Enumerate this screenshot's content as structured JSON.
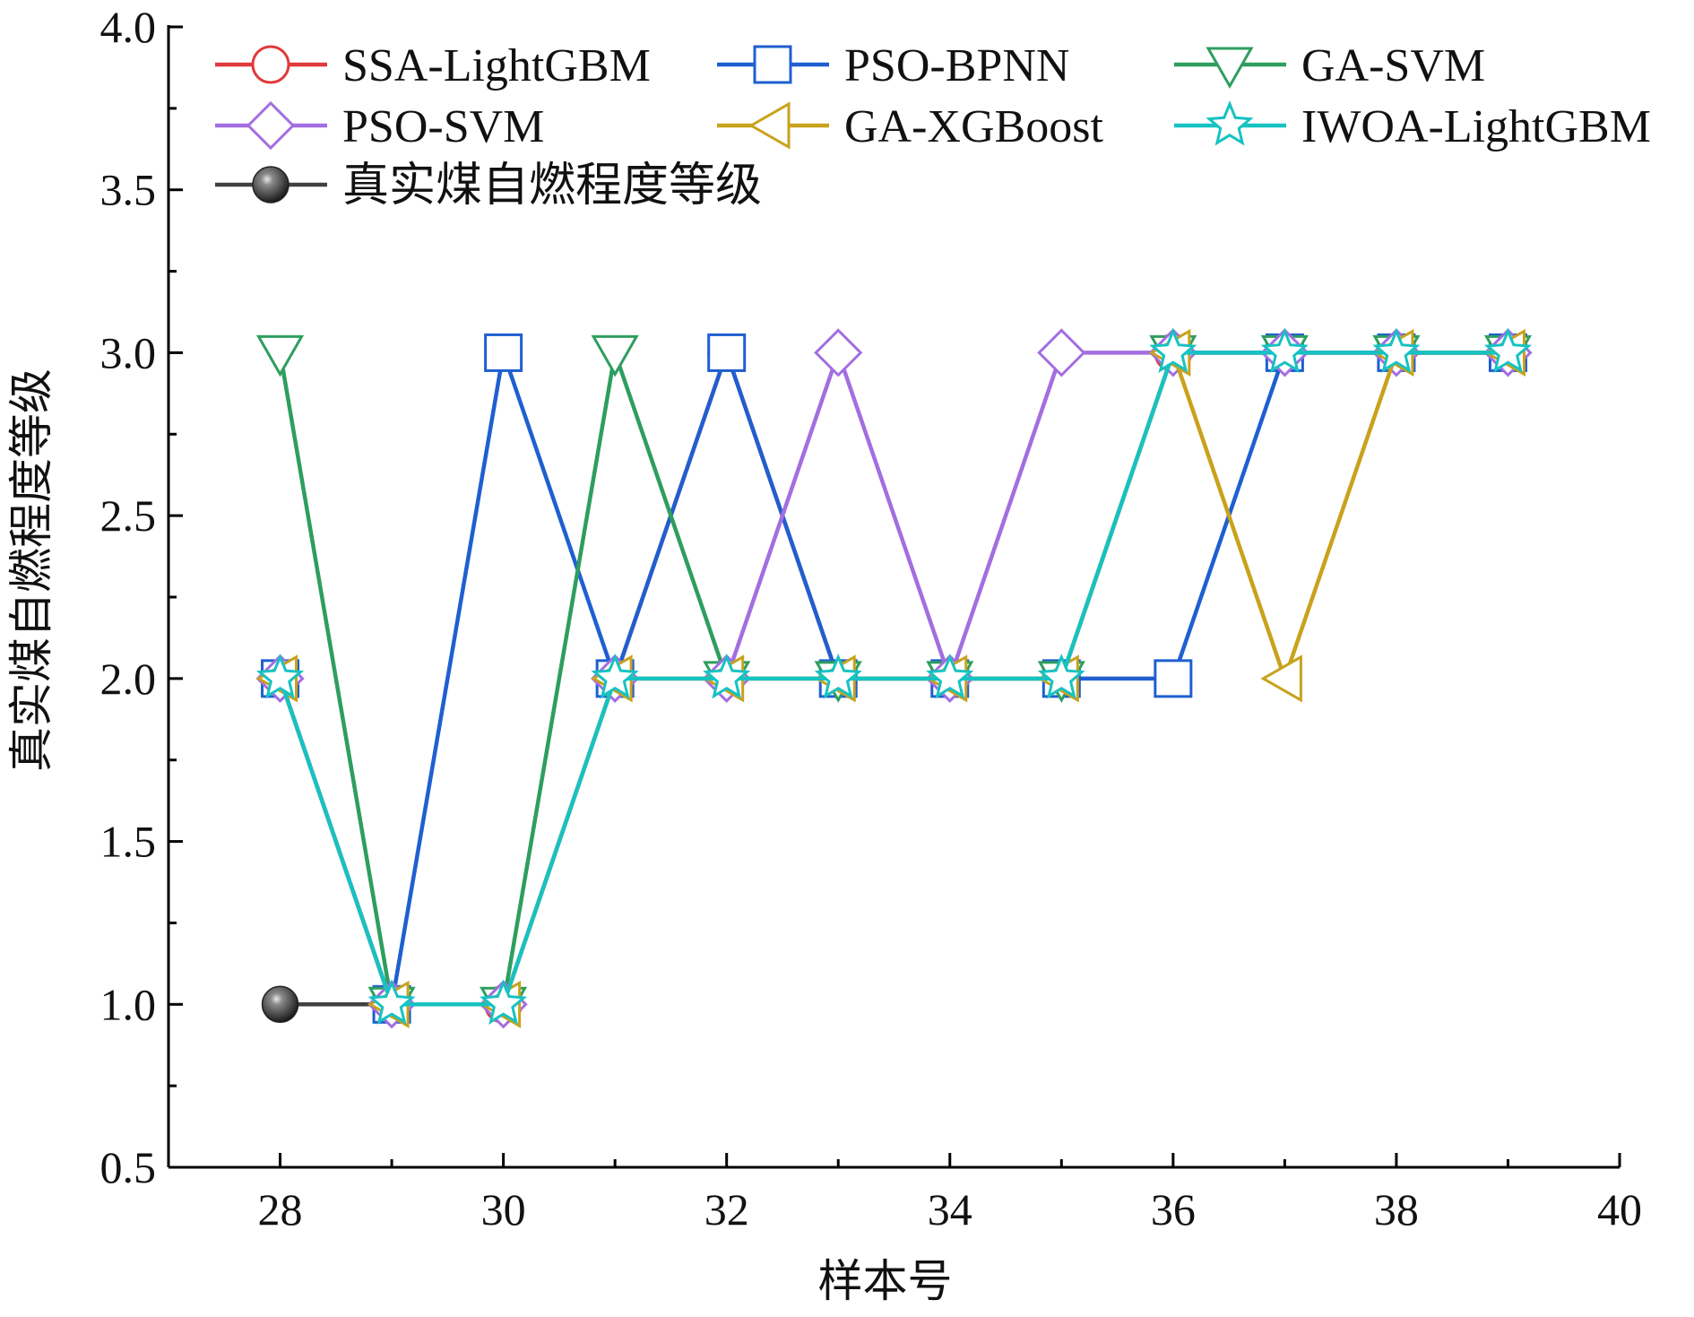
{
  "chart_data": {
    "type": "line",
    "xlabel": "样本号",
    "ylabel": "真实煤自燃程度等级",
    "xlim": [
      27,
      40
    ],
    "ylim": [
      0.5,
      4.0
    ],
    "xticks": [
      28,
      30,
      32,
      34,
      36,
      38,
      40
    ],
    "xtick_labels": [
      "28",
      "30",
      "32",
      "34",
      "36",
      "38",
      "40"
    ],
    "yticks": [
      0.5,
      1.0,
      1.5,
      2.0,
      2.5,
      3.0,
      3.5,
      4.0
    ],
    "ytick_labels": [
      "0.5",
      "1.0",
      "1.5",
      "2.0",
      "2.5",
      "3.0",
      "3.5",
      "4.0"
    ],
    "x": [
      28,
      29,
      30,
      31,
      32,
      33,
      34,
      35,
      36,
      37,
      38,
      39
    ],
    "legend_position": "top",
    "series": [
      {
        "name": "真实煤自燃程度等级",
        "marker": "sphere",
        "color": "#404040",
        "values": [
          1,
          1,
          null,
          null,
          null,
          null,
          null,
          null,
          null,
          null,
          null,
          null
        ]
      },
      {
        "name": "SSA-LightGBM",
        "marker": "circle",
        "color": "#e03a3a",
        "values": [
          2,
          1,
          1,
          2,
          3,
          2,
          2,
          2,
          3,
          3,
          3,
          3
        ]
      },
      {
        "name": "PSO-BPNN",
        "marker": "square",
        "color": "#1f5fd0",
        "values": [
          2,
          1,
          3,
          2,
          3,
          2,
          2,
          2,
          2,
          3,
          3,
          3
        ]
      },
      {
        "name": "GA-SVM",
        "marker": "triangle-down",
        "color": "#2e9e5e",
        "values": [
          3,
          1,
          1,
          3,
          2,
          2,
          2,
          2,
          3,
          3,
          3,
          3
        ]
      },
      {
        "name": "PSO-SVM",
        "marker": "diamond",
        "color": "#a36ee0",
        "values": [
          2,
          1,
          1,
          2,
          2,
          3,
          2,
          3,
          3,
          3,
          3,
          3
        ]
      },
      {
        "name": "GA-XGBoost",
        "marker": "triangle-left",
        "color": "#c9a21c",
        "values": [
          2,
          1,
          1,
          2,
          2,
          2,
          2,
          2,
          3,
          2,
          3,
          3
        ]
      },
      {
        "name": "IWOA-LightGBM",
        "marker": "star",
        "color": "#17c2c2",
        "values": [
          2,
          1,
          1,
          2,
          2,
          2,
          2,
          2,
          3,
          3,
          3,
          3
        ]
      }
    ],
    "legend": [
      {
        "label": "SSA-LightGBM",
        "series": 1
      },
      {
        "label": "PSO-BPNN",
        "series": 2
      },
      {
        "label": "GA-SVM",
        "series": 3
      },
      {
        "label": "PSO-SVM",
        "series": 4
      },
      {
        "label": "GA-XGBoost",
        "series": 5
      },
      {
        "label": "IWOA-LightGBM",
        "series": 6
      },
      {
        "label": "真实煤自燃程度等级",
        "series": 0
      }
    ]
  }
}
